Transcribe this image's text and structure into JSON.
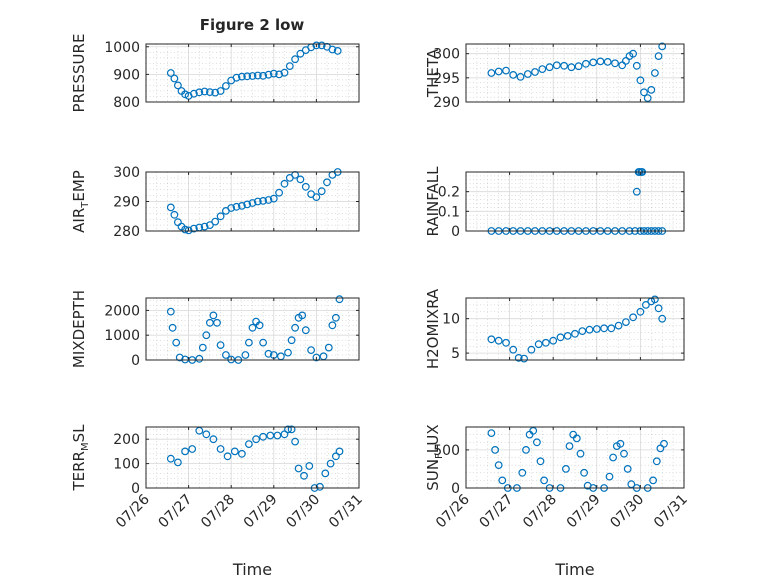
{
  "title": "Figure 2 low",
  "colors": {
    "series": "#0072bd",
    "axis": "#262626",
    "background": "#ffffff"
  },
  "date_tick_labels": [
    "07/26",
    "07/27",
    "07/28",
    "07/29",
    "07/30",
    "07/31"
  ],
  "xlabel": "Time",
  "chart_data": [
    {
      "type": "scatter",
      "ylabel": "PRESSURE",
      "ylim": [
        800,
        1010
      ],
      "yticks": [
        800,
        900,
        1000
      ],
      "ytick_labels": [
        "800",
        "900",
        "1000"
      ],
      "grid": true,
      "x": [
        "07/26 14:00",
        "07/26 16:00",
        "07/26 18:00",
        "07/26 20:00",
        "07/26 22:00",
        "07/27 00:00",
        "07/27 03:00",
        "07/27 06:00",
        "07/27 09:00",
        "07/27 12:00",
        "07/27 15:00",
        "07/27 18:00",
        "07/27 21:00",
        "07/28 00:00",
        "07/28 03:00",
        "07/28 06:00",
        "07/28 09:00",
        "07/28 12:00",
        "07/28 15:00",
        "07/28 18:00",
        "07/28 21:00",
        "07/29 00:00",
        "07/29 03:00",
        "07/29 06:00",
        "07/29 09:00",
        "07/29 12:00",
        "07/29 15:00",
        "07/29 18:00",
        "07/29 21:00",
        "07/30 00:00",
        "07/30 03:00",
        "07/30 06:00",
        "07/30 09:00",
        "07/30 12:00"
      ],
      "y": [
        905,
        885,
        860,
        840,
        828,
        822,
        830,
        835,
        838,
        836,
        834,
        840,
        858,
        878,
        888,
        892,
        893,
        894,
        896,
        895,
        899,
        903,
        900,
        906,
        930,
        955,
        975,
        988,
        998,
        1005,
        1005,
        1000,
        990,
        985
      ]
    },
    {
      "type": "scatter",
      "ylabel": "THETA",
      "ylim": [
        290,
        302
      ],
      "yticks": [
        290,
        295,
        300
      ],
      "ytick_labels": [
        "290",
        "295",
        "300"
      ],
      "grid": true,
      "x": [
        "07/26 14:00",
        "07/26 18:00",
        "07/26 22:00",
        "07/27 02:00",
        "07/27 06:00",
        "07/27 10:00",
        "07/27 14:00",
        "07/27 18:00",
        "07/27 22:00",
        "07/28 02:00",
        "07/28 06:00",
        "07/28 10:00",
        "07/28 14:00",
        "07/28 18:00",
        "07/28 22:00",
        "07/29 02:00",
        "07/29 06:00",
        "07/29 10:00",
        "07/29 14:00",
        "07/29 16:00",
        "07/29 18:00",
        "07/29 20:00",
        "07/29 22:00",
        "07/30 00:00",
        "07/30 02:00",
        "07/30 04:00",
        "07/30 06:00",
        "07/30 08:00",
        "07/30 10:00",
        "07/30 12:00"
      ],
      "y": [
        296,
        296.3,
        296.5,
        295.6,
        295.2,
        295.8,
        296.2,
        296.8,
        297.2,
        297.6,
        297.5,
        297.2,
        297.4,
        297.9,
        298.2,
        298.4,
        298.3,
        298,
        297.6,
        298.5,
        299.5,
        300,
        297.5,
        294.5,
        292,
        290.8,
        292.5,
        296,
        299.5,
        301.5
      ]
    },
    {
      "type": "scatter",
      "ylabel": "AIR_TEMP",
      "ylim": [
        280,
        300
      ],
      "yticks": [
        280,
        290,
        300
      ],
      "ytick_labels": [
        "280",
        "290",
        "300"
      ],
      "grid": true,
      "x": [
        "07/26 14:00",
        "07/26 16:00",
        "07/26 18:00",
        "07/26 20:00",
        "07/26 22:00",
        "07/27 00:00",
        "07/27 03:00",
        "07/27 06:00",
        "07/27 09:00",
        "07/27 12:00",
        "07/27 15:00",
        "07/27 18:00",
        "07/27 21:00",
        "07/28 00:00",
        "07/28 03:00",
        "07/28 06:00",
        "07/28 09:00",
        "07/28 12:00",
        "07/28 15:00",
        "07/28 18:00",
        "07/28 21:00",
        "07/29 00:00",
        "07/29 03:00",
        "07/29 06:00",
        "07/29 09:00",
        "07/29 12:00",
        "07/29 15:00",
        "07/29 18:00",
        "07/29 21:00",
        "07/30 00:00",
        "07/30 03:00",
        "07/30 06:00",
        "07/30 09:00",
        "07/30 12:00"
      ],
      "y": [
        288,
        285.5,
        283,
        281.5,
        280.5,
        280.2,
        280.8,
        281.2,
        281.5,
        282,
        283.2,
        285,
        286.8,
        287.8,
        288.2,
        288.5,
        289,
        289.5,
        290,
        290.2,
        290.5,
        291,
        293,
        296,
        298,
        299,
        297.5,
        295,
        292.5,
        291.5,
        293.5,
        296.5,
        299,
        300
      ]
    },
    {
      "type": "scatter",
      "ylabel": "RAINFALL",
      "ylim": [
        0,
        0.3
      ],
      "yticks": [
        0,
        0.1,
        0.2
      ],
      "ytick_labels": [
        "0",
        "0.1",
        "0.2"
      ],
      "grid": true,
      "x": [
        "07/26 14:00",
        "07/26 18:00",
        "07/26 22:00",
        "07/27 02:00",
        "07/27 06:00",
        "07/27 10:00",
        "07/27 14:00",
        "07/27 18:00",
        "07/27 22:00",
        "07/28 02:00",
        "07/28 06:00",
        "07/28 10:00",
        "07/28 14:00",
        "07/28 18:00",
        "07/28 22:00",
        "07/29 02:00",
        "07/29 06:00",
        "07/29 10:00",
        "07/29 14:00",
        "07/29 18:00",
        "07/29 21:00",
        "07/30 00:00",
        "07/30 02:00",
        "07/30 04:00",
        "07/30 06:00",
        "07/30 08:00",
        "07/30 10:00",
        "07/30 12:00",
        "07/29 22:00",
        "07/29 23:00",
        "07/29 23:30",
        "07/30 00:30",
        "07/30 01:00"
      ],
      "y": [
        0,
        0,
        0,
        0,
        0,
        0,
        0,
        0,
        0,
        0,
        0,
        0,
        0,
        0,
        0,
        0,
        0,
        0,
        0,
        0,
        0,
        0,
        0,
        0,
        0,
        0,
        0,
        0,
        0.2,
        0.3,
        0.3,
        0.3,
        0.3
      ]
    },
    {
      "type": "scatter",
      "ylabel": "MIXDEPTH",
      "ylim": [
        0,
        2500
      ],
      "yticks": [
        0,
        1000,
        2000
      ],
      "ytick_labels": [
        "0",
        "1000",
        "2000"
      ],
      "grid": true,
      "x": [
        "07/26 14:00",
        "07/26 15:00",
        "07/26 17:00",
        "07/26 19:00",
        "07/26 22:00",
        "07/27 02:00",
        "07/27 06:00",
        "07/27 08:00",
        "07/27 10:00",
        "07/27 12:00",
        "07/27 14:00",
        "07/27 16:00",
        "07/27 18:00",
        "07/27 21:00",
        "07/28 00:00",
        "07/28 04:00",
        "07/28 08:00",
        "07/28 10:00",
        "07/28 12:00",
        "07/28 14:00",
        "07/28 16:00",
        "07/28 18:00",
        "07/28 21:00",
        "07/29 00:00",
        "07/29 04:00",
        "07/29 08:00",
        "07/29 10:00",
        "07/29 12:00",
        "07/29 14:00",
        "07/29 16:00",
        "07/29 18:00",
        "07/29 21:00",
        "07/30 00:00",
        "07/30 04:00",
        "07/30 07:00",
        "07/30 09:00",
        "07/30 11:00",
        "07/30 13:00"
      ],
      "y": [
        1950,
        1300,
        700,
        100,
        20,
        0,
        50,
        500,
        1000,
        1500,
        1800,
        1500,
        600,
        200,
        20,
        0,
        200,
        700,
        1300,
        1550,
        1400,
        700,
        250,
        200,
        150,
        300,
        800,
        1300,
        1700,
        1800,
        1200,
        400,
        100,
        150,
        500,
        1400,
        1700,
        2450
      ]
    },
    {
      "type": "scatter",
      "ylabel": "H2OMIXRA",
      "ylim": [
        4,
        13
      ],
      "yticks": [
        5,
        10
      ],
      "ytick_labels": [
        "5",
        "10"
      ],
      "grid": true,
      "x": [
        "07/26 14:00",
        "07/26 18:00",
        "07/26 22:00",
        "07/27 02:00",
        "07/27 05:00",
        "07/27 08:00",
        "07/27 12:00",
        "07/27 16:00",
        "07/27 20:00",
        "07/28 00:00",
        "07/28 04:00",
        "07/28 08:00",
        "07/28 12:00",
        "07/28 16:00",
        "07/28 20:00",
        "07/29 00:00",
        "07/29 04:00",
        "07/29 08:00",
        "07/29 12:00",
        "07/29 16:00",
        "07/29 20:00",
        "07/30 00:00",
        "07/30 03:00",
        "07/30 06:00",
        "07/30 08:00",
        "07/30 10:00",
        "07/30 12:00"
      ],
      "y": [
        7,
        6.8,
        6.5,
        5.5,
        4.3,
        4.2,
        5.5,
        6.3,
        6.5,
        6.8,
        7.3,
        7.5,
        7.8,
        8.2,
        8.4,
        8.5,
        8.6,
        8.6,
        9,
        9.5,
        10.2,
        11,
        12,
        12.5,
        12.8,
        11.5,
        10
      ]
    },
    {
      "type": "scatter",
      "ylabel": "TERR_MSL",
      "ylim": [
        0,
        250
      ],
      "yticks": [
        0,
        100,
        200
      ],
      "ytick_labels": [
        "0",
        "100",
        "200"
      ],
      "grid": true,
      "x": [
        "07/26 14:00",
        "07/26 18:00",
        "07/26 22:00",
        "07/27 02:00",
        "07/27 06:00",
        "07/27 10:00",
        "07/27 14:00",
        "07/27 18:00",
        "07/27 22:00",
        "07/28 02:00",
        "07/28 06:00",
        "07/28 10:00",
        "07/28 14:00",
        "07/28 18:00",
        "07/28 22:00",
        "07/29 02:00",
        "07/29 06:00",
        "07/29 08:00",
        "07/29 10:00",
        "07/29 12:00",
        "07/29 14:00",
        "07/29 17:00",
        "07/29 20:00",
        "07/29 23:00",
        "07/30 02:00",
        "07/30 05:00",
        "07/30 08:00",
        "07/30 11:00",
        "07/30 13:00"
      ],
      "y": [
        120,
        105,
        150,
        160,
        235,
        220,
        200,
        160,
        130,
        150,
        140,
        180,
        200,
        210,
        215,
        215,
        220,
        240,
        240,
        190,
        80,
        50,
        90,
        0,
        5,
        60,
        100,
        130,
        150
      ]
    },
    {
      "type": "scatter",
      "ylabel": "SUN_FLUX",
      "ylim": [
        0,
        800
      ],
      "yticks": [
        0,
        500
      ],
      "ytick_labels": [
        "0",
        "500"
      ],
      "grid": true,
      "x": [
        "07/26 14:00",
        "07/26 16:00",
        "07/26 18:00",
        "07/26 20:00",
        "07/26 23:00",
        "07/27 04:00",
        "07/27 07:00",
        "07/27 09:00",
        "07/27 11:00",
        "07/27 13:00",
        "07/27 15:00",
        "07/27 17:00",
        "07/27 19:00",
        "07/27 22:00",
        "07/28 04:00",
        "07/28 07:00",
        "07/28 09:00",
        "07/28 11:00",
        "07/28 13:00",
        "07/28 15:00",
        "07/28 17:00",
        "07/28 19:00",
        "07/28 22:00",
        "07/29 04:00",
        "07/29 07:00",
        "07/29 09:00",
        "07/29 11:00",
        "07/29 13:00",
        "07/29 15:00",
        "07/29 17:00",
        "07/29 19:00",
        "07/29 22:00",
        "07/30 04:00",
        "07/30 07:00",
        "07/30 09:00",
        "07/30 11:00",
        "07/30 13:00"
      ],
      "y": [
        720,
        500,
        300,
        100,
        0,
        0,
        200,
        500,
        700,
        750,
        600,
        350,
        100,
        0,
        0,
        250,
        550,
        700,
        650,
        450,
        200,
        30,
        0,
        0,
        150,
        400,
        550,
        580,
        450,
        250,
        50,
        0,
        0,
        100,
        350,
        520,
        580
      ]
    }
  ]
}
